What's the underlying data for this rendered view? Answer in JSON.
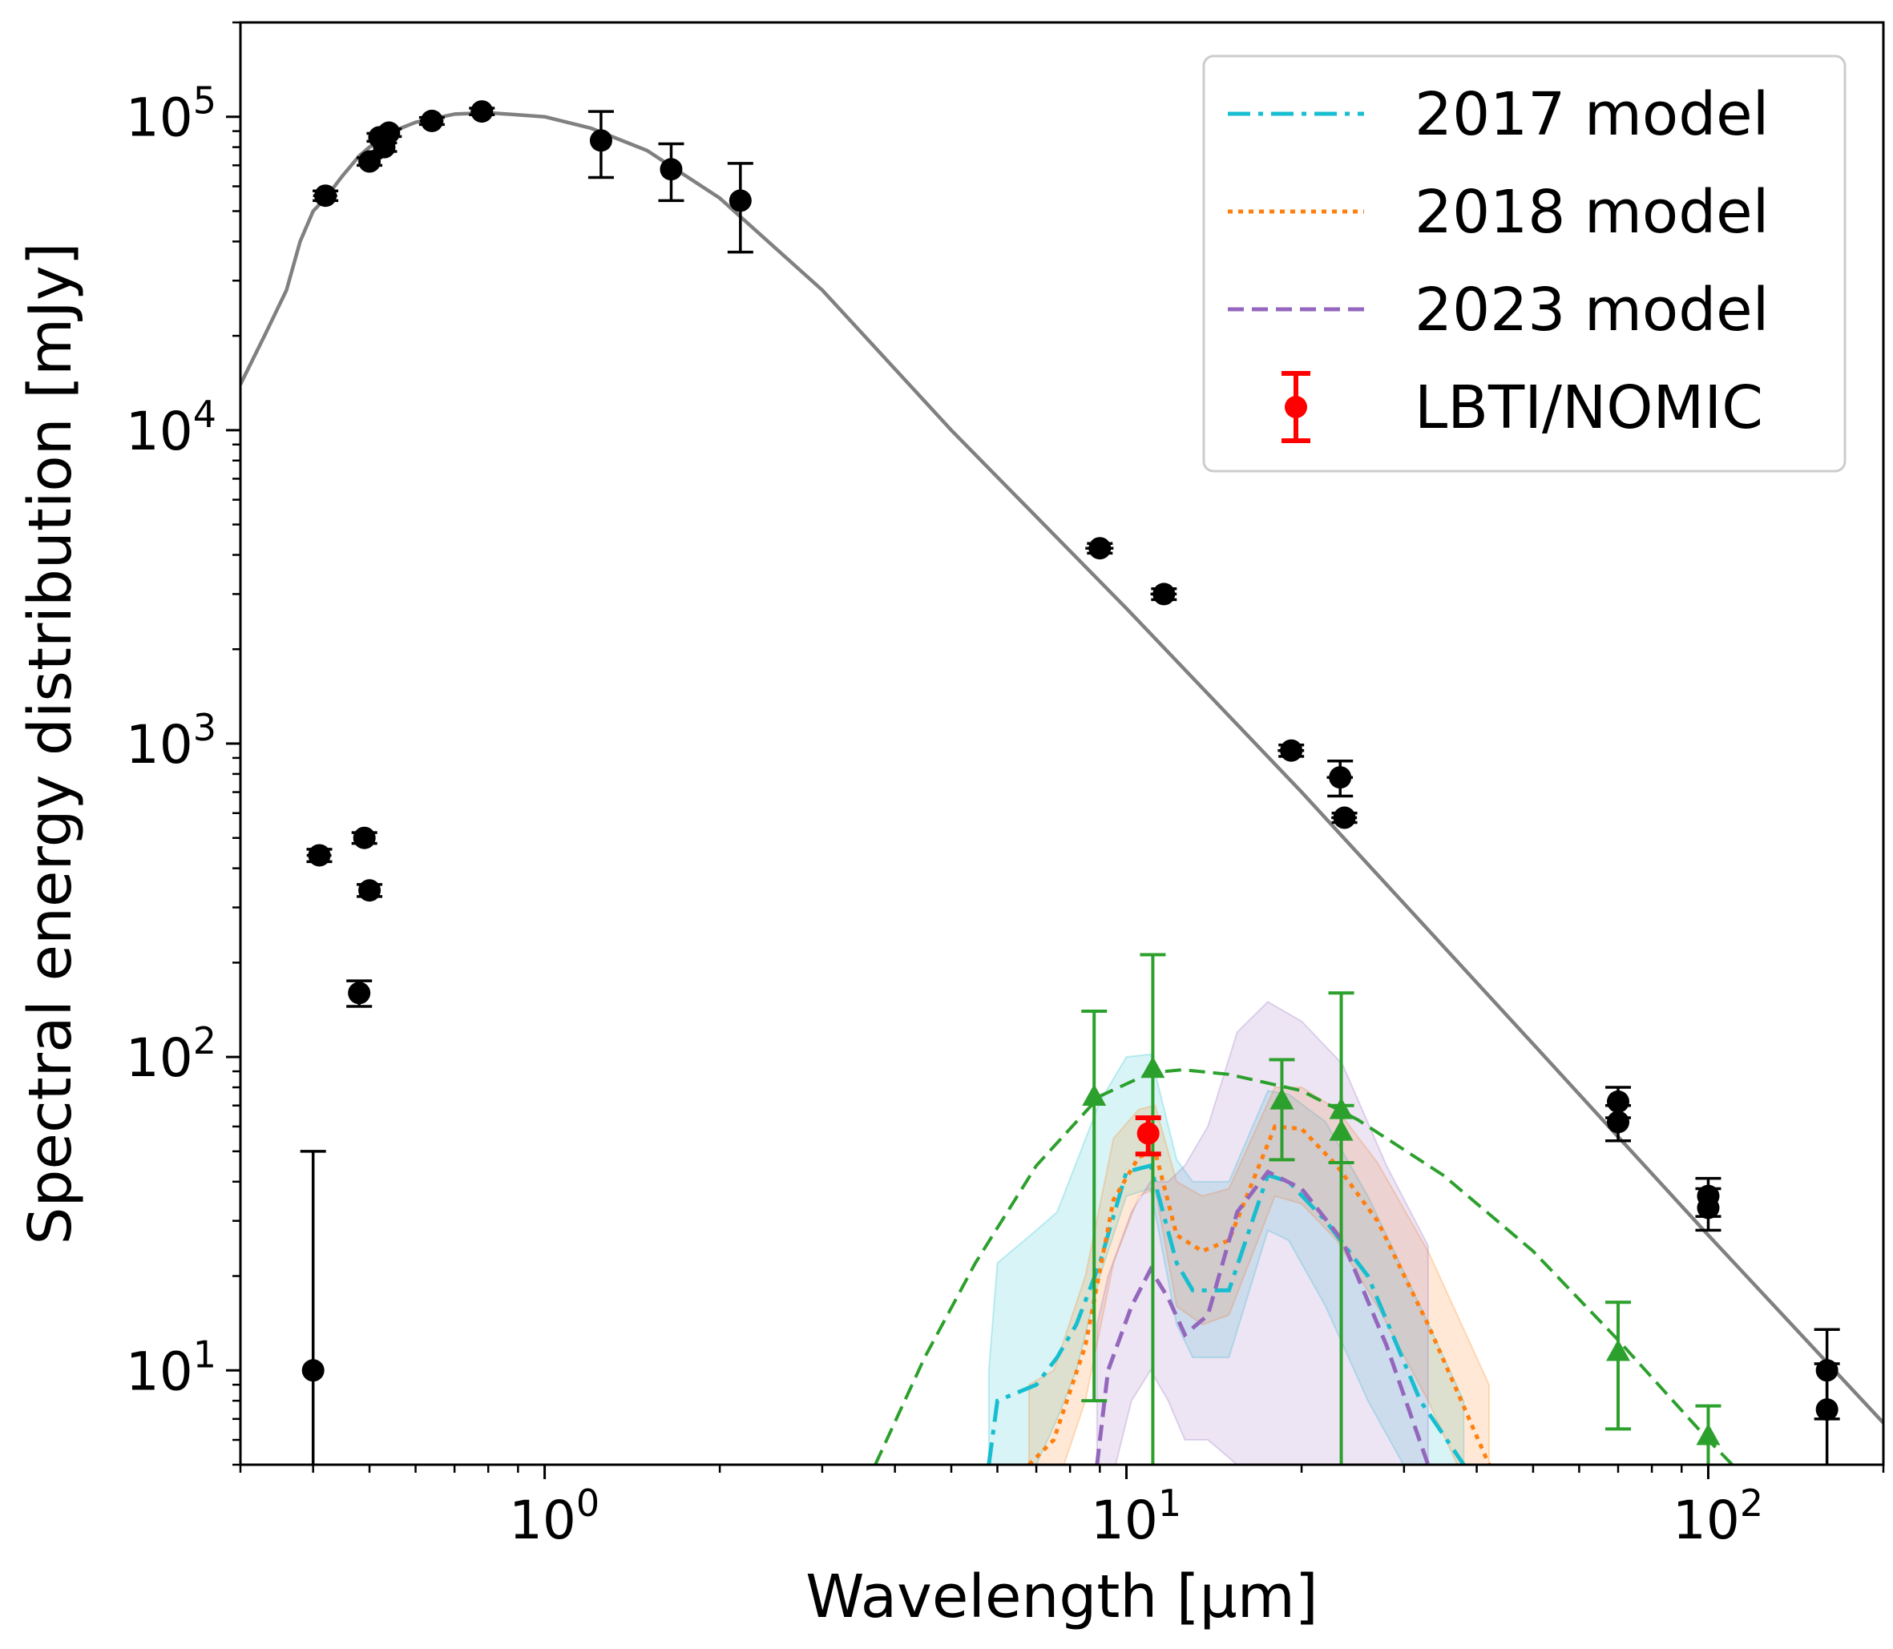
{
  "chart_data": {
    "type": "scatter",
    "xlabel": "Wavelength [μm]",
    "ylabel": "Spectral energy distribution [mJy]",
    "xscale": "log",
    "yscale": "log",
    "xlim": [
      0.3,
      200
    ],
    "ylim": [
      5,
      200000
    ],
    "grid": false,
    "legend_position": "top-right",
    "x_ticks": [
      {
        "value": 1,
        "base": "10",
        "exp": "0"
      },
      {
        "value": 10,
        "base": "10",
        "exp": "1"
      },
      {
        "value": 100,
        "base": "10",
        "exp": "2"
      }
    ],
    "y_ticks": [
      {
        "value": 10,
        "base": "10",
        "exp": "1"
      },
      {
        "value": 100,
        "base": "10",
        "exp": "2"
      },
      {
        "value": 1000,
        "base": "10",
        "exp": "3"
      },
      {
        "value": 10000,
        "base": "10",
        "exp": "4"
      },
      {
        "value": 100000,
        "base": "10",
        "exp": "5"
      }
    ],
    "legend": [
      {
        "label": "2017 model",
        "color": "#17becf",
        "style": "dashdot"
      },
      {
        "label": "2018 model",
        "color": "#ff7f0e",
        "style": "dotted"
      },
      {
        "label": "2023 model",
        "color": "#9467bd",
        "style": "dashed"
      },
      {
        "label": "LBTI/NOMIC",
        "color": "#ff0000",
        "style": "errorbar"
      }
    ],
    "stellar_photosphere": {
      "color": "#808080",
      "x": [
        0.3,
        0.33,
        0.36,
        0.38,
        0.4,
        0.42,
        0.45,
        0.48,
        0.5,
        0.55,
        0.6,
        0.7,
        0.8,
        1.0,
        1.2,
        1.5,
        2.0,
        3.0,
        5.0,
        10.0,
        20.0,
        50.0,
        100.0,
        200.0
      ],
      "y": [
        14000,
        20000,
        28000,
        40000,
        50000,
        55000,
        65000,
        75000,
        80000,
        90000,
        96000,
        102000,
        103000,
        100000,
        92000,
        78000,
        55000,
        28000,
        10000,
        2700,
        700,
        110,
        27,
        6.8
      ]
    },
    "photometry": {
      "color": "#000000",
      "points": [
        {
          "x": 0.4,
          "y": 10,
          "yerr_lo": 9.5,
          "yerr_hi": 40,
          "xerr": 0
        },
        {
          "x": 0.41,
          "y": 440,
          "yerr_lo": 20,
          "yerr_hi": 20,
          "xerr": 0.02
        },
        {
          "x": 0.42,
          "y": 56000,
          "yerr_lo": 2000,
          "yerr_hi": 2000,
          "xerr": 0.02
        },
        {
          "x": 0.48,
          "y": 160,
          "yerr_lo": 15,
          "yerr_hi": 15,
          "xerr": 0.02
        },
        {
          "x": 0.49,
          "y": 500,
          "yerr_lo": 20,
          "yerr_hi": 20,
          "xerr": 0.02
        },
        {
          "x": 0.5,
          "y": 340,
          "yerr_lo": 15,
          "yerr_hi": 15,
          "xerr": 0.02
        },
        {
          "x": 0.5,
          "y": 72000,
          "yerr_lo": 2000,
          "yerr_hi": 2000,
          "xerr": 0.02
        },
        {
          "x": 0.52,
          "y": 86000,
          "yerr_lo": 2500,
          "yerr_hi": 2500,
          "xerr": 0.02
        },
        {
          "x": 0.53,
          "y": 80000,
          "yerr_lo": 2500,
          "yerr_hi": 2500,
          "xerr": 0.02
        },
        {
          "x": 0.54,
          "y": 89000,
          "yerr_lo": 2500,
          "yerr_hi": 2500,
          "xerr": 0.02
        },
        {
          "x": 0.64,
          "y": 97000,
          "yerr_lo": 2500,
          "yerr_hi": 2500,
          "xerr": 0.03
        },
        {
          "x": 0.78,
          "y": 104000,
          "yerr_lo": 2500,
          "yerr_hi": 2500,
          "xerr": 0.03
        },
        {
          "x": 1.25,
          "y": 84000,
          "yerr_lo": 20000,
          "yerr_hi": 20000,
          "xerr": 0
        },
        {
          "x": 1.65,
          "y": 68000,
          "yerr_lo": 14000,
          "yerr_hi": 14000,
          "xerr": 0
        },
        {
          "x": 2.17,
          "y": 54000,
          "yerr_lo": 17000,
          "yerr_hi": 17000,
          "xerr": 0
        },
        {
          "x": 9.0,
          "y": 4200,
          "yerr_lo": 150,
          "yerr_hi": 150,
          "xerr": 0.5
        },
        {
          "x": 11.6,
          "y": 3000,
          "yerr_lo": 120,
          "yerr_hi": 120,
          "xerr": 0.6
        },
        {
          "x": 19.2,
          "y": 950,
          "yerr_lo": 40,
          "yerr_hi": 40,
          "xerr": 1.0
        },
        {
          "x": 23.3,
          "y": 780,
          "yerr_lo": 100,
          "yerr_hi": 100,
          "xerr": 1.2
        },
        {
          "x": 23.7,
          "y": 580,
          "yerr_lo": 20,
          "yerr_hi": 20,
          "xerr": 1.2
        },
        {
          "x": 70,
          "y": 72,
          "yerr_lo": 8,
          "yerr_hi": 8,
          "xerr": 2
        },
        {
          "x": 70,
          "y": 62,
          "yerr_lo": 8,
          "yerr_hi": 8,
          "xerr": 2
        },
        {
          "x": 100,
          "y": 36,
          "yerr_lo": 5,
          "yerr_hi": 5,
          "xerr": 3
        },
        {
          "x": 100,
          "y": 33,
          "yerr_lo": 5,
          "yerr_hi": 5,
          "xerr": 3
        },
        {
          "x": 160,
          "y": 10,
          "yerr_lo": 3,
          "yerr_hi": 3.5,
          "xerr": 0
        },
        {
          "x": 160,
          "y": 7.5,
          "yerr_lo": 2.5,
          "yerr_hi": 3,
          "xerr": 0
        }
      ]
    },
    "excess_points": {
      "color": "#2ca02c",
      "marker": "triangle",
      "points": [
        {
          "x": 8.8,
          "y": 75,
          "yerr_lo": 67,
          "yerr_hi": 65
        },
        {
          "x": 11.1,
          "y": 92,
          "yerr_lo": 90,
          "yerr_hi": 120
        },
        {
          "x": 18.5,
          "y": 73,
          "yerr_lo": 26,
          "yerr_hi": 25
        },
        {
          "x": 23.4,
          "y": 68,
          "yerr_lo": 66,
          "yerr_hi": 92
        },
        {
          "x": 23.4,
          "y": 58,
          "yerr_lo": 12,
          "yerr_hi": 12
        },
        {
          "x": 70,
          "y": 11.5,
          "yerr_lo": 5,
          "yerr_hi": 5
        },
        {
          "x": 100,
          "y": 6.2,
          "yerr_lo": 3,
          "yerr_hi": 1.5
        }
      ]
    },
    "blackbody_fit": {
      "color": "#2ca02c",
      "style": "dashed",
      "x": [
        3.7,
        4.5,
        5.5,
        7,
        9,
        11,
        12.5,
        15,
        20,
        25,
        35,
        50,
        70,
        100,
        110
      ],
      "y": [
        5,
        11,
        22,
        45,
        75,
        89,
        91,
        88,
        78,
        63,
        42,
        24,
        12.5,
        6,
        5
      ]
    },
    "nomic_point": {
      "x": 10.9,
      "y": 57,
      "yerr_lo": 8,
      "yerr_hi": 7,
      "color": "#ff0000"
    },
    "models": [
      {
        "name": "2017 model",
        "color": "#17becf",
        "style": "dashdot",
        "x": [
          5.8,
          6.0,
          7,
          7.6,
          8.2,
          9.0,
          10.0,
          11.0,
          12.2,
          13.0,
          15.0,
          17.5,
          19.0,
          22.0,
          26.0,
          32.0,
          38.0
        ],
        "y": [
          5,
          8,
          9,
          11,
          14,
          22,
          43,
          45,
          22,
          18,
          18,
          42,
          40,
          30,
          20,
          8,
          5
        ],
        "band_lo": [
          3.0,
          3.5,
          5,
          7,
          10,
          20,
          36,
          38,
          14,
          11,
          11,
          28,
          26,
          16,
          8,
          4,
          2.5
        ],
        "band_hi": [
          10,
          22,
          28,
          32,
          46,
          72,
          100,
          102,
          47,
          40,
          40,
          78,
          76,
          62,
          36,
          16,
          8
        ]
      },
      {
        "name": "2018 model",
        "color": "#ff7f0e",
        "style": "dotted",
        "x": [
          6.8,
          7.5,
          8.5,
          9.5,
          10.5,
          11.2,
          12.2,
          13.5,
          15.0,
          18.0,
          20.0,
          23.0,
          27.0,
          33.0,
          42.0
        ],
        "y": [
          5,
          6,
          12,
          35,
          48,
          50,
          27,
          24,
          26,
          60,
          59,
          45,
          30,
          14,
          5
        ],
        "band_lo": [
          3,
          4,
          8,
          22,
          36,
          38,
          16,
          14,
          15,
          36,
          34,
          26,
          16,
          8,
          3
        ],
        "band_hi": [
          9,
          10,
          20,
          55,
          68,
          70,
          40,
          36,
          38,
          80,
          80,
          68,
          46,
          24,
          9
        ]
      },
      {
        "name": "2023 model",
        "color": "#9467bd",
        "style": "dashed",
        "x": [
          8.9,
          9.3,
          10.2,
          11.0,
          11.8,
          12.6,
          13.8,
          15.5,
          17.5,
          20.0,
          23.5,
          28.0,
          33.0
        ],
        "y": [
          5,
          10,
          16,
          21,
          17,
          13,
          15,
          32,
          43,
          38,
          26,
          12,
          5
        ],
        "band_lo": [
          2,
          4,
          8,
          10,
          8,
          6,
          6,
          5,
          5,
          5,
          4,
          3,
          2.5
        ],
        "band_hi": [
          14,
          20,
          32,
          40,
          40,
          45,
          60,
          120,
          150,
          130,
          95,
          45,
          25
        ]
      }
    ]
  }
}
